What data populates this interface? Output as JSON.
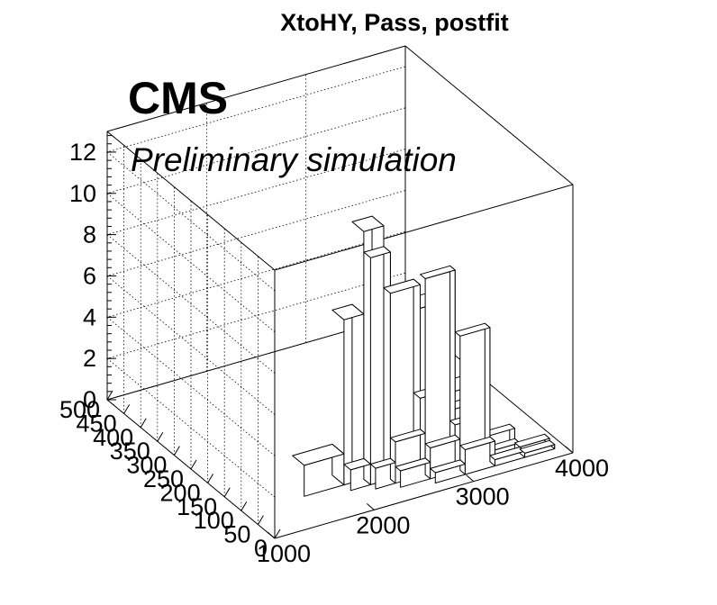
{
  "chart_data": {
    "type": "lego",
    "title": "XtoHY, Pass, postfit",
    "labels": {
      "experiment": "CMS",
      "status": "Preliminary simulation"
    },
    "xlabel": "",
    "ylabel": "",
    "zlabel": "",
    "xlim": [
      1000,
      4000
    ],
    "ylim": [
      0,
      500
    ],
    "zlim": [
      0,
      13
    ],
    "x_ticks": [
      "1000",
      "2000",
      "3000",
      "4000"
    ],
    "y_ticks": [
      "0",
      "50",
      "100",
      "150",
      "200",
      "250",
      "300",
      "350",
      "400",
      "450",
      "500"
    ],
    "z_ticks": [
      "0",
      "2",
      "4",
      "6",
      "8",
      "10",
      "12"
    ],
    "grid": true,
    "bars": [
      {
        "x0": 1600,
        "x1": 2000,
        "y0": 90,
        "y1": 125,
        "z": 1.5
      },
      {
        "x0": 2000,
        "x1": 2200,
        "y0": 90,
        "y1": 125,
        "z": 8.0
      },
      {
        "x0": 2200,
        "x1": 2400,
        "y0": 90,
        "y1": 125,
        "z": 12.0
      },
      {
        "x0": 2400,
        "x1": 2700,
        "y0": 90,
        "y1": 125,
        "z": 7.0
      },
      {
        "x0": 2700,
        "x1": 3000,
        "y0": 90,
        "y1": 125,
        "z": 7.5
      },
      {
        "x0": 3000,
        "x1": 3300,
        "y0": 90,
        "y1": 125,
        "z": 3.0
      },
      {
        "x0": 2000,
        "x1": 2200,
        "y0": 70,
        "y1": 90,
        "z": 1.0
      },
      {
        "x0": 2200,
        "x1": 2400,
        "y0": 70,
        "y1": 90,
        "z": 11.0
      },
      {
        "x0": 2400,
        "x1": 2700,
        "y0": 70,
        "y1": 90,
        "z": 9.0
      },
      {
        "x0": 2700,
        "x1": 3000,
        "y0": 70,
        "y1": 90,
        "z": 3.5
      },
      {
        "x0": 3000,
        "x1": 3300,
        "y0": 70,
        "y1": 90,
        "z": 2.5
      },
      {
        "x0": 2200,
        "x1": 2400,
        "y0": 55,
        "y1": 70,
        "z": 1.0
      },
      {
        "x0": 2400,
        "x1": 2700,
        "y0": 55,
        "y1": 70,
        "z": 2.0
      },
      {
        "x0": 2700,
        "x1": 3000,
        "y0": 55,
        "y1": 70,
        "z": 9.5
      },
      {
        "x0": 3000,
        "x1": 3300,
        "y0": 55,
        "y1": 70,
        "z": 2.0
      },
      {
        "x0": 3300,
        "x1": 3600,
        "y0": 55,
        "y1": 70,
        "z": 1.0
      },
      {
        "x0": 2400,
        "x1": 2700,
        "y0": 40,
        "y1": 55,
        "z": 0.8
      },
      {
        "x0": 2700,
        "x1": 3000,
        "y0": 40,
        "y1": 55,
        "z": 1.5
      },
      {
        "x0": 3000,
        "x1": 3300,
        "y0": 40,
        "y1": 55,
        "z": 6.5
      },
      {
        "x0": 3300,
        "x1": 3600,
        "y0": 40,
        "y1": 55,
        "z": 0.5
      },
      {
        "x0": 3600,
        "x1": 3900,
        "y0": 40,
        "y1": 55,
        "z": 0.3
      },
      {
        "x0": 2700,
        "x1": 3000,
        "y0": 25,
        "y1": 40,
        "z": 0.5
      },
      {
        "x0": 3000,
        "x1": 3300,
        "y0": 25,
        "y1": 40,
        "z": 1.2
      },
      {
        "x0": 3300,
        "x1": 3600,
        "y0": 25,
        "y1": 40,
        "z": 0.3
      },
      {
        "x0": 3600,
        "x1": 3900,
        "y0": 25,
        "y1": 40,
        "z": 0.2
      }
    ]
  }
}
